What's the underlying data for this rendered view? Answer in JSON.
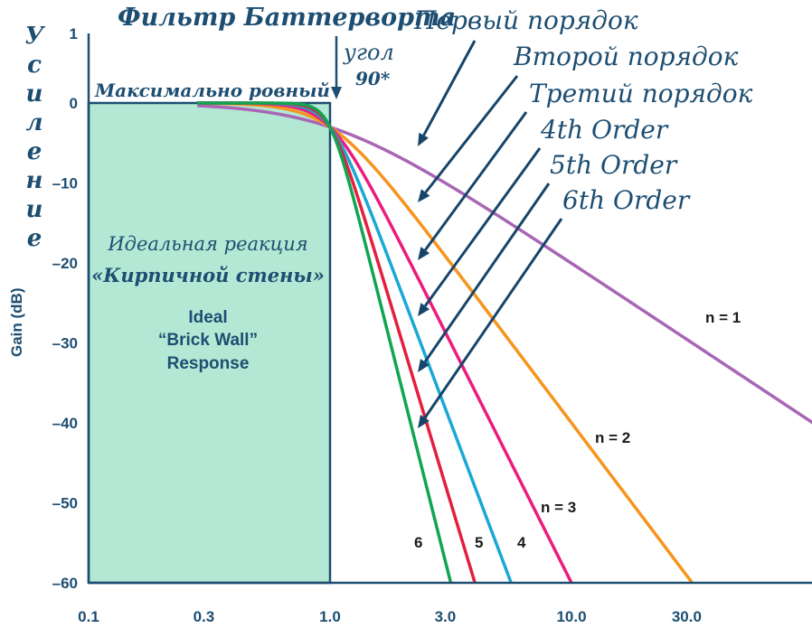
{
  "chart_data": {
    "type": "line",
    "title": "Фильтр Баттерворта",
    "ylabel": "Gain (dB)",
    "ylabel_ru": "Усиление",
    "xscale": "log",
    "xlim": [
      0.1,
      100
    ],
    "ylim": [
      -60,
      1
    ],
    "x_ticks": [
      0.1,
      0.3,
      1.0,
      3.0,
      10.0,
      30.0
    ],
    "x_tick_labels": [
      "0.1",
      "0.3",
      "1.0",
      "3.0",
      "10.0",
      "30.0"
    ],
    "y_ticks": [
      1,
      0,
      -10,
      -20,
      -30,
      -40,
      -50,
      -60
    ],
    "y_tick_labels": [
      "1",
      "0",
      "–10",
      "–20",
      "–30",
      "–40",
      "–50",
      "–60"
    ],
    "formula": "gain = -10*log10(1 + f^(2n))",
    "series": [
      {
        "name": "n = 1",
        "order": 1,
        "label": "n = 1",
        "color": "#a866b5"
      },
      {
        "name": "n = 2",
        "order": 2,
        "label": "n = 2",
        "color": "#f7941d"
      },
      {
        "name": "n = 3",
        "order": 3,
        "label": "n = 3",
        "color": "#ec1c7c"
      },
      {
        "name": "4",
        "order": 4,
        "label": "4",
        "color": "#1aa8d4"
      },
      {
        "name": "5",
        "order": 5,
        "label": "5",
        "color": "#e41f3d"
      },
      {
        "name": "6",
        "order": 6,
        "label": "6",
        "color": "#10a550"
      }
    ],
    "brick_wall": {
      "x_range": [
        0.1,
        1.0
      ],
      "y_range": [
        -60,
        0
      ],
      "color": "#b3e9d4"
    },
    "annotations": {
      "flat": "Максимально ровный",
      "angle": "угол",
      "angle_value": "90*",
      "ideal_ru_1": "Идеальная реакция",
      "ideal_ru_2": "«Кирпичной стены»",
      "ideal_en_1": "Ideal",
      "ideal_en_2": "“Brick Wall”",
      "ideal_en_3": "Response",
      "order_labels": [
        "Первый порядок",
        "Второй порядок",
        "Третий порядок",
        "4th Order",
        "5th Order",
        "6th Order"
      ]
    }
  }
}
